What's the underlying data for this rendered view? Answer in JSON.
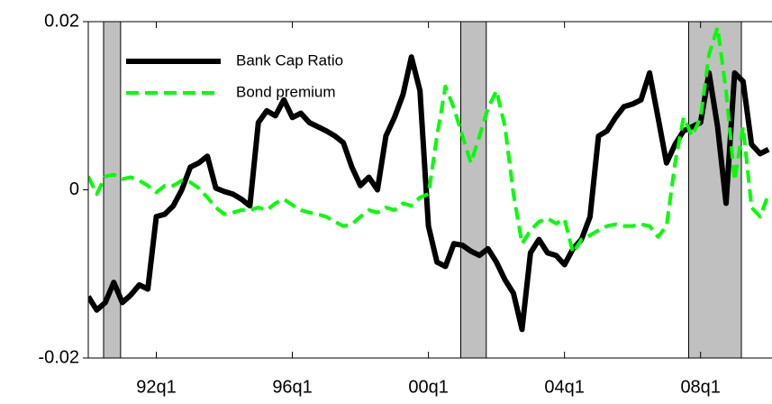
{
  "chart_data": {
    "type": "line",
    "x": [
      1990,
      1990.25,
      1990.5,
      1990.75,
      1991,
      1991.25,
      1991.5,
      1991.75,
      1992,
      1992.25,
      1992.5,
      1992.75,
      1993,
      1993.25,
      1993.5,
      1993.75,
      1994,
      1994.25,
      1994.5,
      1994.75,
      1995,
      1995.25,
      1995.5,
      1995.75,
      1996,
      1996.25,
      1996.5,
      1996.75,
      1997,
      1997.25,
      1997.5,
      1997.75,
      1998,
      1998.25,
      1998.5,
      1998.75,
      1999,
      1999.25,
      1999.5,
      1999.75,
      2000,
      2000.25,
      2000.5,
      2000.75,
      2001,
      2001.25,
      2001.5,
      2001.75,
      2002,
      2002.25,
      2002.5,
      2002.75,
      2003,
      2003.25,
      2003.5,
      2003.75,
      2004,
      2004.25,
      2004.5,
      2004.75,
      2005,
      2005.25,
      2005.5,
      2005.75,
      2006,
      2006.25,
      2006.5,
      2006.75,
      2007,
      2007.25,
      2007.5,
      2007.75,
      2008,
      2008.25,
      2008.5,
      2008.75,
      2009,
      2009.25,
      2009.5,
      2009.75,
      2010
    ],
    "series": [
      {
        "name": "Bank Cap Ratio",
        "color": "#000000",
        "dashed": false,
        "values": [
          -0.0127,
          -0.0143,
          -0.0134,
          -0.011,
          -0.0134,
          -0.0125,
          -0.0113,
          -0.0118,
          -0.0032,
          -0.0029,
          -0.0019,
          0,
          0.0027,
          0.0032,
          0.004,
          0.0002,
          -0.0002,
          -0.0005,
          -0.0011,
          -0.0019,
          0.008,
          0.0094,
          0.0088,
          0.0107,
          0.0086,
          0.0091,
          0.008,
          0.0075,
          0.007,
          0.0064,
          0.0056,
          0.0027,
          0.0005,
          0.0015,
          0,
          0.0064,
          0.0086,
          0.0113,
          0.0158,
          0.0118,
          -0.0043,
          -0.0086,
          -0.0091,
          -0.0064,
          -0.0066,
          -0.0073,
          -0.0078,
          -0.007,
          -0.0086,
          -0.0107,
          -0.0123,
          -0.0166,
          -0.0075,
          -0.0059,
          -0.0075,
          -0.0078,
          -0.0089,
          -0.007,
          -0.0059,
          -0.0032,
          0.0064,
          0.007,
          0.0086,
          0.0099,
          0.0102,
          0.0107,
          0.0139,
          0.0086,
          0.0032,
          0.0054,
          0.007,
          0.0075,
          0.008,
          0.0139,
          0.0075,
          -0.0016,
          0.0139,
          0.0129,
          0.0054,
          0.0043,
          0.0048
        ]
      },
      {
        "name": "Bond premium",
        "color": "#00ff00",
        "dashed": true,
        "values": [
          0.0016,
          -0.0005,
          0.0016,
          0.0018,
          0.0013,
          0.0015,
          0.0011,
          0.0005,
          -0.0003,
          0.0005,
          0.0005,
          0.0011,
          0.0009,
          0.0002,
          -0.0009,
          -0.0021,
          -0.0029,
          -0.0027,
          -0.0024,
          -0.0024,
          -0.0021,
          -0.0024,
          -0.0016,
          -0.0011,
          -0.0018,
          -0.0024,
          -0.0027,
          -0.0029,
          -0.0032,
          -0.0038,
          -0.0043,
          -0.0041,
          -0.0032,
          -0.0024,
          -0.0027,
          -0.0021,
          -0.0024,
          -0.0016,
          -0.0019,
          -0.0009,
          -0.0005,
          0.0064,
          0.0123,
          0.0097,
          0.0064,
          0.0032,
          0.0064,
          0.0097,
          0.0118,
          0.0075,
          -0.0005,
          -0.0064,
          -0.0048,
          -0.0038,
          -0.0034,
          -0.004,
          -0.0035,
          -0.0075,
          -0.0059,
          -0.0054,
          -0.0048,
          -0.0043,
          -0.0041,
          -0.0043,
          -0.0043,
          -0.0041,
          -0.0043,
          -0.0056,
          -0.0043,
          0.0032,
          0.0086,
          0.0064,
          0.0086,
          0.0161,
          0.0193,
          0.0118,
          0.0011,
          0.0075,
          -0.0021,
          -0.0032,
          -0.0005
        ]
      }
    ],
    "shaded_periods": [
      [
        1990.45,
        1990.95
      ],
      [
        2000.95,
        2001.7
      ],
      [
        2007.65,
        2009.2
      ]
    ],
    "shade_color": "#c0c0c0",
    "xlim": [
      1990,
      2010.1
    ],
    "xticks": [
      {
        "value": 1992,
        "label": "92q1"
      },
      {
        "value": 1996,
        "label": "96q1"
      },
      {
        "value": 2000,
        "label": "00q1"
      },
      {
        "value": 2004,
        "label": "04q1"
      },
      {
        "value": 2008,
        "label": "08q1"
      }
    ],
    "ylim": [
      -0.02,
      0.02
    ],
    "yticks": [
      -0.02,
      0,
      0.02
    ],
    "legend": "upper left"
  }
}
